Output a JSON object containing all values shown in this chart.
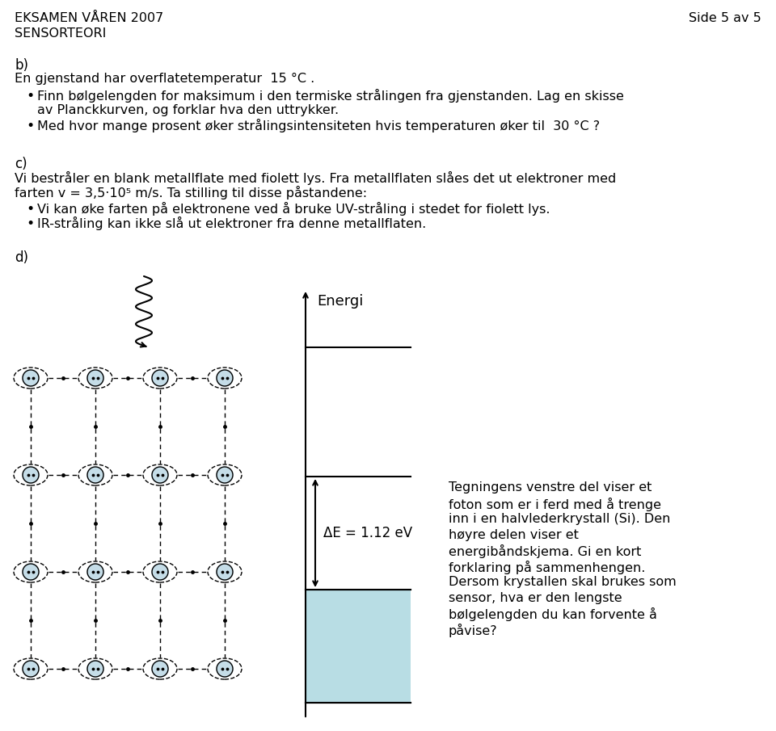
{
  "title_left": "EKSAMEN VÅREN 2007\nSENSORTEORI",
  "title_right": "Side 5 av 5",
  "section_b_label": "b)",
  "section_b_text": "En gjenstand har overflatetemperatur  15 °C .",
  "bullet_b1": "Finn bølgelengden for maksimum i den termiske strålingen fra gjenstanden. Lag en skisse\nav Planckkurven, og forklar hva den uttrykker.",
  "bullet_b2": "Med hvor mange prosent øker strålingsintensiteten hvis temperaturen øker til  30 °C ?",
  "section_c_label": "c)",
  "section_c_line1": "Vi bestråler en blank metallflate med fiolett lys. Fra metallflaten slåes det ut elektroner med",
  "section_c_line2": "farten v = 3,5·10⁵ m/s. Ta stilling til disse påstandene:",
  "bullet_c1": "Vi kan øke farten på elektronene ved å bruke UV-stråling i stedet for fiolett lys.",
  "bullet_c2": "IR-stråling kan ikke slå ut elektroner fra denne metallflaten.",
  "section_d_label": "d)",
  "energy_label": "Energi",
  "delta_e_label": "ΔE = 1.12 eV",
  "right_text_lines": [
    "Tegningens venstre del viser et",
    "foton som er i ferd med å trenge",
    "inn i en halvlederkrystall (Si). Den",
    "høyre delen viser et",
    "energibåndskjema. Gi en kort",
    "forklaring på sammenhengen.",
    "Dersom krystallen skal brukes som",
    "sensor, hva er den lengste",
    "bølgelengden du kan forvente å",
    "påvise?"
  ],
  "light_blue": "#b8dde4",
  "bg_color": "#ffffff",
  "text_color": "#000000"
}
